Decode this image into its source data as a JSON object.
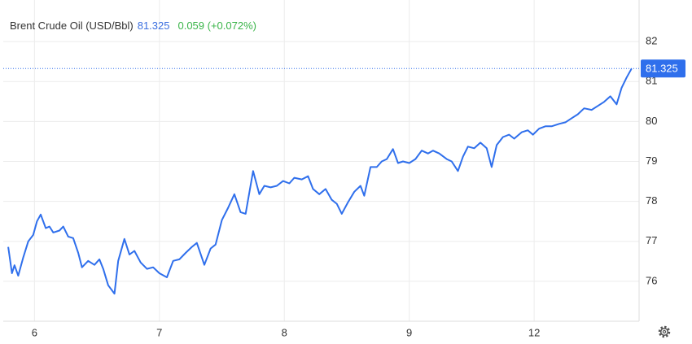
{
  "chart_data": {
    "type": "line",
    "title": "Brent Crude Oil (USD/Bbl)",
    "last_price": 81.325,
    "change": "0.059 (+0.072%)",
    "xlim": [
      -0.25,
      4.84
    ],
    "xticks": [
      {
        "value": 0,
        "label": "6"
      },
      {
        "value": 1,
        "label": "7"
      },
      {
        "value": 2,
        "label": "8"
      },
      {
        "value": 3,
        "label": "9"
      },
      {
        "value": 4,
        "label": "12"
      }
    ],
    "ylim": [
      75,
      83
    ],
    "yticks": [
      76,
      77,
      78,
      79,
      80,
      81,
      82
    ],
    "grid": true,
    "series": [
      {
        "color": "#2f6fec",
        "x": [
          -0.21,
          -0.18,
          -0.16,
          -0.13,
          -0.09,
          -0.05,
          -0.01,
          0.02,
          0.05,
          0.09,
          0.12,
          0.15,
          0.2,
          0.23,
          0.27,
          0.31,
          0.35,
          0.38,
          0.43,
          0.48,
          0.52,
          0.55,
          0.59,
          0.64,
          0.67,
          0.72,
          0.76,
          0.8,
          0.85,
          0.9,
          0.95,
          1.0,
          1.06,
          1.11,
          1.16,
          1.21,
          1.26,
          1.3,
          1.36,
          1.41,
          1.45,
          1.5,
          1.55,
          1.6,
          1.65,
          1.69,
          1.75,
          1.8,
          1.84,
          1.89,
          1.94,
          1.99,
          2.04,
          2.08,
          2.14,
          2.19,
          2.23,
          2.28,
          2.33,
          2.38,
          2.42,
          2.46,
          2.51,
          2.56,
          2.61,
          2.64,
          2.69,
          2.74,
          2.78,
          2.82,
          2.87,
          2.91,
          2.95,
          3.0,
          3.05,
          3.1,
          3.15,
          3.19,
          3.24,
          3.3,
          3.34,
          3.39,
          3.43,
          3.47,
          3.52,
          3.57,
          3.62,
          3.66,
          3.7,
          3.75,
          3.8,
          3.84,
          3.9,
          3.95,
          3.99,
          4.04,
          4.09,
          4.14,
          4.2,
          4.25,
          4.3,
          4.35,
          4.4,
          4.46,
          4.51,
          4.56,
          4.61,
          4.66,
          4.7,
          4.74,
          4.78
        ],
        "values": [
          76.86,
          76.2,
          76.4,
          76.14,
          76.6,
          77.0,
          77.16,
          77.5,
          77.67,
          77.33,
          77.37,
          77.22,
          77.27,
          77.37,
          77.12,
          77.08,
          76.71,
          76.35,
          76.51,
          76.41,
          76.55,
          76.31,
          75.9,
          75.69,
          76.51,
          77.06,
          76.67,
          76.76,
          76.47,
          76.31,
          76.35,
          76.2,
          76.1,
          76.51,
          76.55,
          76.71,
          76.86,
          76.96,
          76.41,
          76.82,
          76.92,
          77.53,
          77.84,
          78.18,
          77.73,
          77.69,
          78.76,
          78.18,
          78.39,
          78.35,
          78.39,
          78.51,
          78.45,
          78.59,
          78.55,
          78.63,
          78.31,
          78.18,
          78.31,
          78.04,
          77.94,
          77.69,
          77.98,
          78.24,
          78.39,
          78.14,
          78.86,
          78.86,
          79.0,
          79.06,
          79.31,
          78.96,
          79.0,
          78.96,
          79.06,
          79.27,
          79.2,
          79.27,
          79.2,
          79.06,
          79.0,
          78.76,
          79.12,
          79.37,
          79.33,
          79.47,
          79.33,
          78.86,
          79.41,
          79.61,
          79.67,
          79.57,
          79.73,
          79.78,
          79.67,
          79.82,
          79.88,
          79.88,
          79.94,
          79.98,
          80.08,
          80.18,
          80.33,
          80.29,
          80.39,
          80.49,
          80.63,
          80.43,
          80.84,
          81.1,
          81.325
        ]
      }
    ]
  }
}
